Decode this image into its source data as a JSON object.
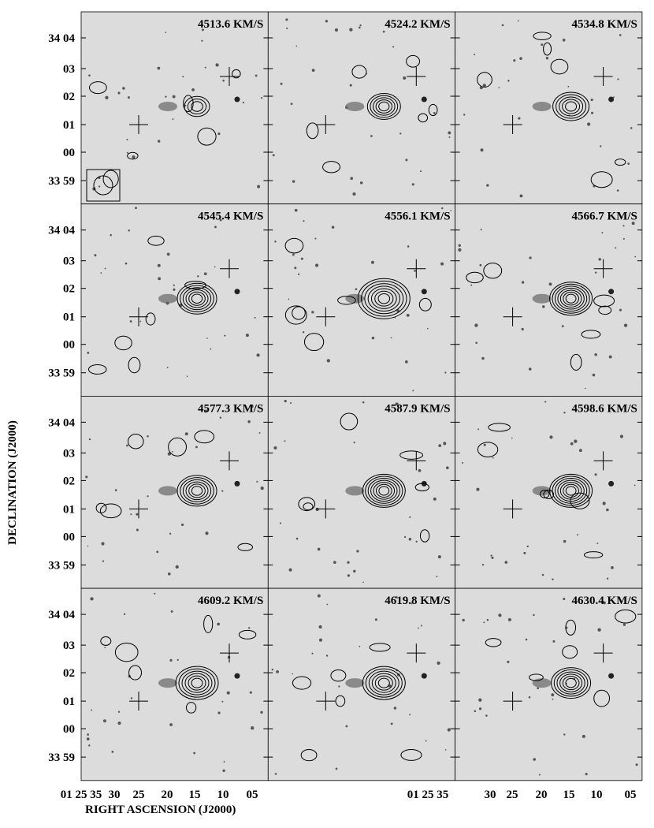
{
  "panels": [
    {
      "label": "4513.6 KM/S"
    },
    {
      "label": "4524.2 KM/S"
    },
    {
      "label": "4534.8 KM/S"
    },
    {
      "label": "4545.4 KM/S"
    },
    {
      "label": "4556.1 KM/S"
    },
    {
      "label": "4566.7 KM/S"
    },
    {
      "label": "4577.3 KM/S"
    },
    {
      "label": "4587.9 KM/S"
    },
    {
      "label": "4598.6 KM/S"
    },
    {
      "label": "4609.2 KM/S"
    },
    {
      "label": "4619.8 KM/S"
    },
    {
      "label": "4630.4 KM/S"
    }
  ],
  "y_tick_labels": [
    "34 04",
    "03",
    "02",
    "01",
    "00",
    "33 59"
  ],
  "x_tick_labels": [
    [
      "01 25 35",
      "30",
      "25",
      "20",
      "15",
      "10",
      "05"
    ],
    [
      "01 25 35",
      "30",
      "25",
      "20",
      "15",
      "10",
      "05"
    ]
  ],
  "y_axis_title": "DECLINATION (J2000)",
  "x_axis_title": "RIGHT ASCENSION (J2000)"
}
